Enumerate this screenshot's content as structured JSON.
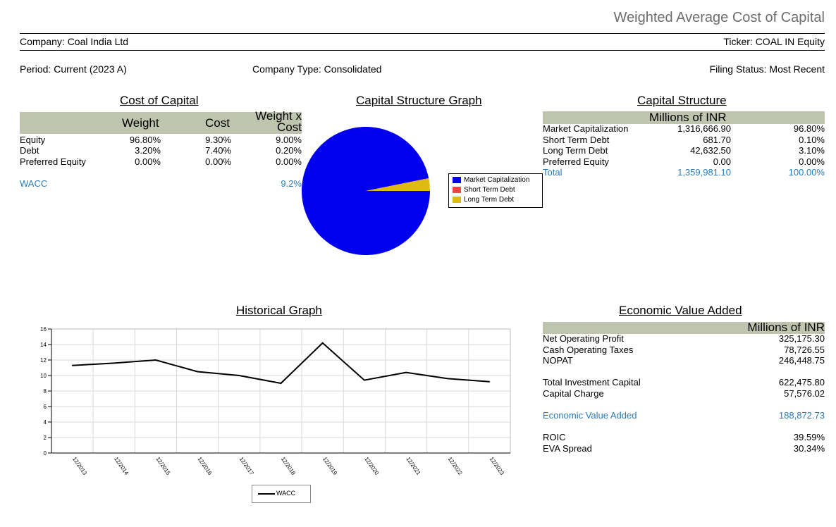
{
  "page_title": "Weighted Average Cost of Capital",
  "company_label": "Company: Coal India Ltd",
  "ticker_label": "Ticker: COAL IN Equity",
  "period_label": "Period: Current (2023 A)",
  "company_type_label": "Company Type: Consolidated",
  "filing_status_label": "Filing Status: Most Recent",
  "cost_of_capital": {
    "title": "Cost of Capital",
    "col_weight": "Weight",
    "col_cost": "Cost",
    "col_weight_x_cost_line1": "Weight x",
    "col_weight_x_cost_line2": "Cost",
    "rows": [
      {
        "label": "Equity",
        "weight": "96.80%",
        "cost": "9.30%",
        "wxc": "9.00%"
      },
      {
        "label": "Debt",
        "weight": "3.20%",
        "cost": "7.40%",
        "wxc": "0.20%"
      },
      {
        "label": "Preferred Equity",
        "weight": "0.00%",
        "cost": "0.00%",
        "wxc": "0.00%"
      }
    ],
    "wacc_label": "WACC",
    "wacc_value": "9.2%"
  },
  "capital_structure_graph": {
    "title": "Capital Structure Graph",
    "legend": [
      "Market Capitalization",
      "Short Term Debt",
      "Long Term Debt"
    ],
    "colors": [
      "#0000ee",
      "#ee4444",
      "#ddbb11"
    ]
  },
  "capital_structure": {
    "title": "Capital Structure",
    "units": "Millions of INR",
    "rows": [
      {
        "label": "Market Capitalization",
        "value": "1,316,666.90",
        "pct": "96.80%"
      },
      {
        "label": "Short Term Debt",
        "value": "681.70",
        "pct": "0.10%"
      },
      {
        "label": "Long Term Debt",
        "value": "42,632.50",
        "pct": "3.10%"
      },
      {
        "label": "Preferred Equity",
        "value": "0.00",
        "pct": "0.00%"
      }
    ],
    "total_label": "Total",
    "total_value": "1,359,981.10",
    "total_pct": "100.00%"
  },
  "historical_graph": {
    "title": "Historical Graph",
    "legend_label": "WACC"
  },
  "eva": {
    "title": "Economic Value Added",
    "units": "Millions of INR",
    "net_operating_profit_label": "Net Operating Profit",
    "net_operating_profit": "325,175.30",
    "cash_operating_taxes_label": "Cash Operating Taxes",
    "cash_operating_taxes": "78,726.55",
    "nopat_label": "NOPAT",
    "nopat": "246,448.75",
    "total_investment_capital_label": "Total Investment Capital",
    "total_investment_capital": "622,475.80",
    "capital_charge_label": "Capital Charge",
    "capital_charge": "57,576.02",
    "eva_label": "Economic Value Added",
    "eva_value": "188,872.73",
    "roic_label": "ROIC",
    "roic": "39.59%",
    "eva_spread_label": "EVA Spread",
    "eva_spread": "30.34%"
  },
  "chart_data": [
    {
      "type": "pie",
      "title": "Capital Structure Graph",
      "labels": [
        "Market Capitalization",
        "Short Term Debt",
        "Long Term Debt"
      ],
      "values": [
        96.8,
        0.1,
        3.1
      ],
      "colors": [
        "#0000ee",
        "#ee4444",
        "#ddbb11"
      ],
      "legend": "right"
    },
    {
      "type": "line",
      "title": "Historical Graph",
      "x": [
        "12/2013",
        "12/2014",
        "12/2015",
        "12/2016",
        "12/2017",
        "12/2018",
        "12/2019",
        "12/2020",
        "12/2021",
        "12/2022",
        "12/2023"
      ],
      "series": [
        {
          "name": "WACC",
          "values": [
            11.3,
            11.6,
            12.0,
            10.5,
            10.0,
            9.0,
            14.2,
            9.4,
            10.4,
            9.6,
            9.2
          ]
        }
      ],
      "yticks": [
        "0",
        "2",
        "4",
        "6",
        "8",
        "10",
        "12",
        "14",
        "16"
      ],
      "ylim": [
        0,
        16
      ],
      "grid": true,
      "legend": "bottom"
    }
  ]
}
